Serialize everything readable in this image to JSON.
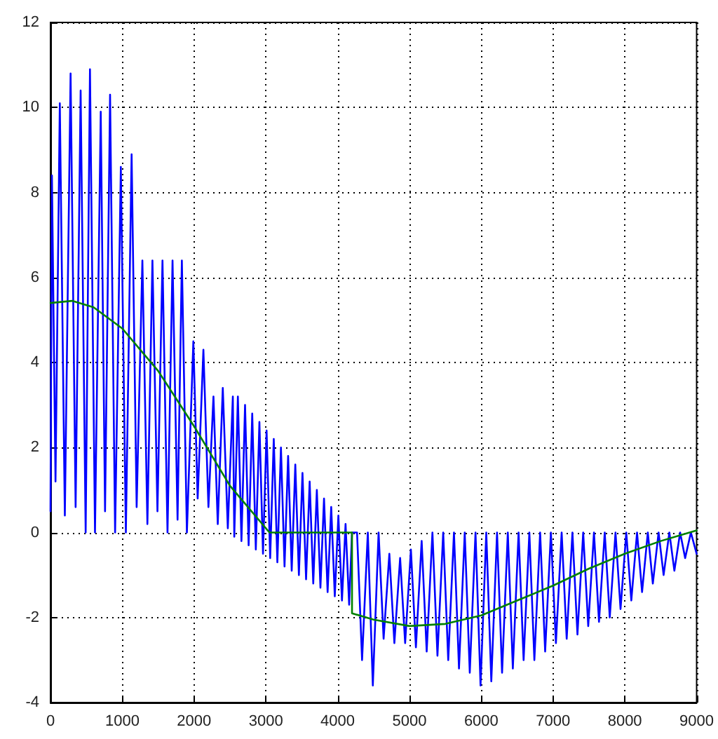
{
  "chart_data": {
    "type": "line",
    "xlim": [
      0,
      9000
    ],
    "xticks": [
      0,
      1000,
      2000,
      3000,
      4000,
      5000,
      6000,
      7000,
      8000,
      9000
    ],
    "ylim": [
      -4,
      12
    ],
    "yticks": [
      -4,
      -2,
      0,
      2,
      4,
      6,
      8,
      10,
      12
    ],
    "grid": true,
    "marker": "none",
    "line_style": "solid",
    "series": [
      {
        "color": "#0000ff",
        "x": [
          0,
          20,
          70,
          130,
          200,
          280,
          350,
          420,
          490,
          550,
          620,
          700,
          760,
          830,
          900,
          980,
          1050,
          1130,
          1200,
          1280,
          1350,
          1420,
          1490,
          1560,
          1630,
          1700,
          1770,
          1830,
          1900,
          1990,
          2050,
          2130,
          2200,
          2270,
          2330,
          2400,
          2470,
          2540,
          2560,
          2610,
          2660,
          2710,
          2760,
          2810,
          2860,
          2910,
          2960,
          3010,
          3060,
          3110,
          3160,
          3210,
          3260,
          3310,
          3360,
          3410,
          3460,
          3510,
          3560,
          3610,
          3660,
          3710,
          3760,
          3810,
          3860,
          3910,
          3960,
          4010,
          4060,
          4110,
          4160,
          4200,
          4270,
          4340,
          4420,
          4490,
          4570,
          4640,
          4720,
          4790,
          4870,
          4940,
          5020,
          5090,
          5170,
          5240,
          5320,
          5390,
          5470,
          5540,
          5620,
          5690,
          5770,
          5840,
          5920,
          5990,
          6070,
          6140,
          6220,
          6290,
          6370,
          6440,
          6520,
          6590,
          6670,
          6740,
          6820,
          6890,
          6970,
          7040,
          7120,
          7190,
          7270,
          7340,
          7420,
          7490,
          7570,
          7640,
          7720,
          7790,
          7870,
          7940,
          8020,
          8090,
          8170,
          8240,
          8320,
          8390,
          8470,
          8540,
          8620,
          8690,
          8770,
          8840,
          8920,
          9000
        ],
        "values": [
          0.5,
          8.4,
          1.2,
          10.1,
          0.4,
          10.8,
          0.6,
          10.4,
          0,
          10.9,
          0,
          9.9,
          0.5,
          10.3,
          0,
          8.6,
          0,
          8.9,
          0.6,
          6.4,
          0.2,
          6.4,
          0.5,
          6.4,
          0,
          6.4,
          0.3,
          6.4,
          0,
          4.5,
          0.8,
          4.3,
          0.6,
          3.2,
          0.2,
          3.4,
          0.1,
          3.2,
          -0.1,
          3.2,
          -0.2,
          3.0,
          -0.3,
          2.8,
          -0.4,
          2.6,
          -0.5,
          2.4,
          -0.6,
          2.2,
          -0.7,
          2.0,
          -0.8,
          1.8,
          -0.9,
          1.6,
          -1.0,
          1.4,
          -1.1,
          1.2,
          -1.2,
          1.0,
          -1.3,
          0.8,
          -1.4,
          0.6,
          -1.5,
          0.4,
          -1.6,
          0.2,
          -1.7,
          0,
          0,
          -3.0,
          0,
          -3.6,
          0,
          -2.5,
          -0.5,
          -2.6,
          -0.6,
          -2.6,
          -0.4,
          -2.7,
          -0.2,
          -2.8,
          0,
          -2.9,
          0,
          -3.0,
          0,
          -3.2,
          0,
          -3.3,
          0,
          -3.6,
          0,
          -3.5,
          0,
          -3.3,
          0,
          -3.2,
          0,
          -3.0,
          0,
          -3.0,
          0,
          -2.8,
          0,
          -2.6,
          0,
          -2.5,
          0,
          -2.4,
          0,
          -2.2,
          0,
          -2.1,
          0,
          -2.0,
          0,
          -1.8,
          0,
          -1.6,
          0,
          -1.4,
          0,
          -1.2,
          0,
          -1.0,
          0,
          -0.9,
          0,
          -0.6,
          0,
          -0.5
        ]
      },
      {
        "color": "#008000",
        "x": [
          0,
          300,
          600,
          1000,
          1500,
          2000,
          2500,
          3050,
          4200,
          4200,
          4500,
          5000,
          5500,
          6000,
          6500,
          7000,
          7500,
          8000,
          8500,
          9000
        ],
        "values": [
          5.4,
          5.45,
          5.3,
          4.8,
          3.8,
          2.5,
          1.1,
          0,
          0,
          -1.9,
          -2.05,
          -2.2,
          -2.15,
          -1.95,
          -1.6,
          -1.25,
          -0.85,
          -0.5,
          -0.2,
          0.05
        ]
      }
    ]
  }
}
